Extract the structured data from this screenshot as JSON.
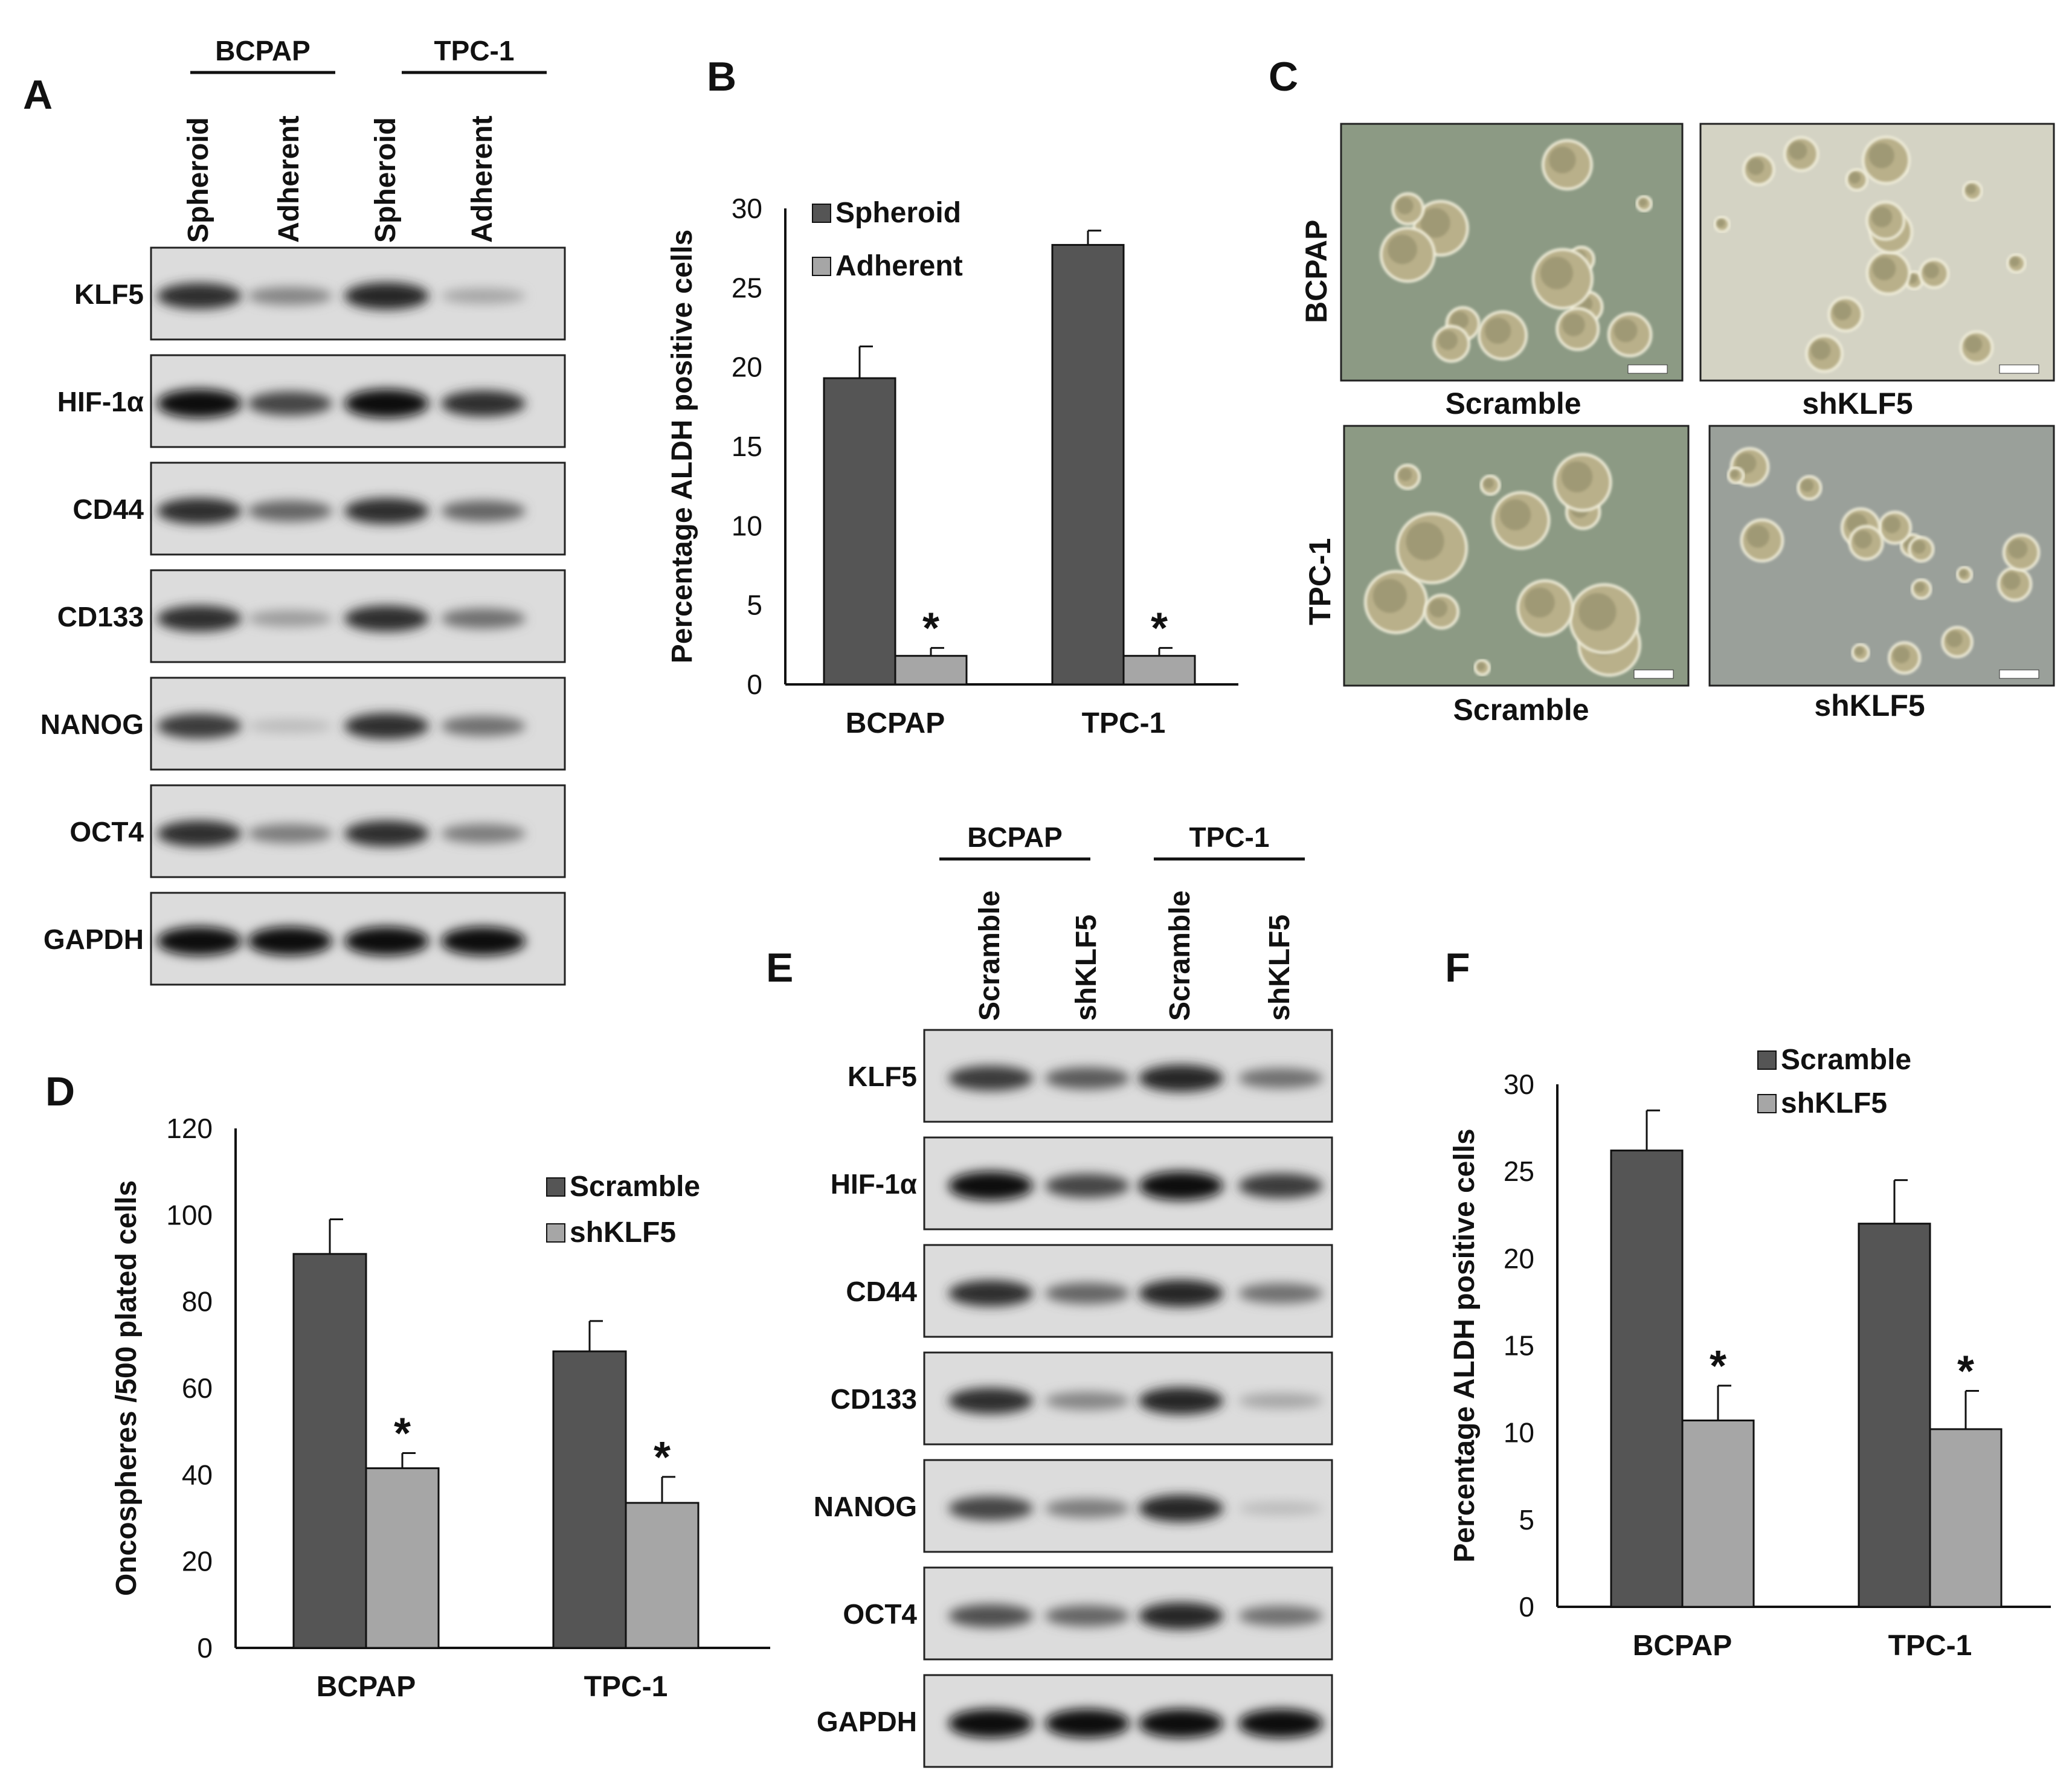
{
  "panels": {
    "A": {
      "letter": "A",
      "groups": [
        "BCPAP",
        "TPC-1"
      ],
      "lanes": [
        "Spheroid",
        "Adherent",
        "Spheroid",
        "Adherent"
      ],
      "blots": [
        {
          "label": "KLF5",
          "intensity": [
            0.85,
            0.45,
            0.9,
            0.3
          ]
        },
        {
          "label": "HIF-1α",
          "intensity": [
            1.0,
            0.75,
            1.0,
            0.85
          ]
        },
        {
          "label": "CD44",
          "intensity": [
            0.85,
            0.6,
            0.85,
            0.6
          ]
        },
        {
          "label": "CD133",
          "intensity": [
            0.85,
            0.35,
            0.85,
            0.55
          ]
        },
        {
          "label": "NANOG",
          "intensity": [
            0.8,
            0.2,
            0.85,
            0.55
          ]
        },
        {
          "label": "OCT4",
          "intensity": [
            0.85,
            0.5,
            0.85,
            0.5
          ]
        },
        {
          "label": "GAPDH",
          "intensity": [
            1.0,
            1.0,
            1.0,
            1.0
          ]
        }
      ]
    },
    "C": {
      "letter": "C",
      "row_labels": [
        "BCPAP",
        "TPC-1"
      ],
      "captions": [
        "Scramble",
        "shKLF5",
        "Scramble",
        "shKLF5"
      ]
    },
    "E": {
      "letter": "E",
      "groups": [
        "BCPAP",
        "TPC-1"
      ],
      "lanes": [
        "Scramble",
        "shKLF5",
        "Scramble",
        "shKLF5"
      ],
      "blots": [
        {
          "label": "KLF5",
          "intensity": [
            0.8,
            0.65,
            0.9,
            0.55
          ]
        },
        {
          "label": "HIF-1α",
          "intensity": [
            1.0,
            0.75,
            1.0,
            0.8
          ]
        },
        {
          "label": "CD44",
          "intensity": [
            0.85,
            0.6,
            0.9,
            0.55
          ]
        },
        {
          "label": "CD133",
          "intensity": [
            0.85,
            0.45,
            0.9,
            0.3
          ]
        },
        {
          "label": "NANOG",
          "intensity": [
            0.75,
            0.5,
            0.9,
            0.2
          ]
        },
        {
          "label": "OCT4",
          "intensity": [
            0.7,
            0.6,
            0.9,
            0.55
          ]
        },
        {
          "label": "GAPDH",
          "intensity": [
            1.0,
            1.0,
            1.0,
            1.0
          ]
        }
      ]
    }
  },
  "colors": {
    "dark": "#555555",
    "light": "#a6a6a6",
    "blot_bg": "#dcdcdc",
    "micro_green": "#8c9a84",
    "micro_beige": "#d4d3c4",
    "micro_gray": "#9aa09a"
  },
  "chart_data": [
    {
      "id": "B",
      "letter": "B",
      "type": "bar",
      "categories": [
        "BCPAP",
        "TPC-1"
      ],
      "series": [
        {
          "name": "Spheroid",
          "values": [
            19.3,
            27.7
          ],
          "errors": [
            2.0,
            0.9
          ]
        },
        {
          "name": "Adherent",
          "values": [
            1.8,
            1.8
          ],
          "errors": [
            0.5,
            0.5
          ]
        }
      ],
      "ylabel": "Percentage ALDH positive cells",
      "ylim": [
        0,
        30
      ],
      "yticks": [
        0,
        5,
        10,
        15,
        20,
        25,
        30
      ],
      "significance": [
        "*",
        "*"
      ],
      "legend": "top-left"
    },
    {
      "id": "D",
      "letter": "D",
      "type": "bar",
      "categories": [
        "BCPAP",
        "TPC-1"
      ],
      "series": [
        {
          "name": "Scramble",
          "values": [
            91,
            68.5
          ],
          "errors": [
            8,
            7
          ]
        },
        {
          "name": "shKLF5",
          "values": [
            41.5,
            33.5
          ],
          "errors": [
            3.5,
            6
          ]
        }
      ],
      "ylabel": "Oncospheres /500 plated cells",
      "ylim": [
        0,
        120
      ],
      "yticks": [
        0,
        20,
        40,
        60,
        80,
        100,
        120
      ],
      "significance": [
        "*",
        "*"
      ],
      "legend": "top-right"
    },
    {
      "id": "F",
      "letter": "F",
      "type": "bar",
      "categories": [
        "BCPAP",
        "TPC-1"
      ],
      "series": [
        {
          "name": "Scramble",
          "values": [
            26.2,
            22.0
          ],
          "errors": [
            2.3,
            2.5
          ]
        },
        {
          "name": "shKLF5",
          "values": [
            10.7,
            10.2
          ],
          "errors": [
            2.0,
            2.2
          ]
        }
      ],
      "ylabel": "Percentage ALDH positive cells",
      "ylim": [
        0,
        30
      ],
      "yticks": [
        0,
        5,
        10,
        15,
        20,
        25,
        30
      ],
      "significance": [
        "*",
        "*"
      ],
      "legend": "top-right"
    }
  ]
}
